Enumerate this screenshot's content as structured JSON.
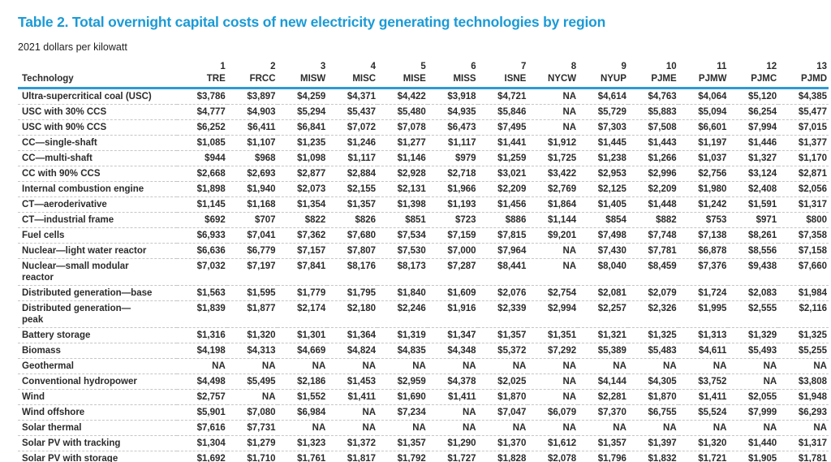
{
  "title": "Table 2. Total overnight capital costs of new electricity generating technologies by region",
  "subtitle": "2021 dollars per kilowatt",
  "colors": {
    "title_blue": "#1b9ad6",
    "header_rule_blue": "#2e9ad5"
  },
  "table": {
    "tech_header": "Technology",
    "col_numbers": [
      "1",
      "2",
      "3",
      "4",
      "5",
      "6",
      "7",
      "8",
      "9",
      "10",
      "11",
      "12",
      "13"
    ],
    "col_codes": [
      "TRE",
      "FRCC",
      "MISW",
      "MISC",
      "MISE",
      "MISS",
      "ISNE",
      "NYCW",
      "NYUP",
      "PJME",
      "PJMW",
      "PJMC",
      "PJMD"
    ],
    "rows": [
      {
        "tech": "Ultra-supercritical coal (USC)",
        "values": [
          "$3,786",
          "$3,897",
          "$4,259",
          "$4,371",
          "$4,422",
          "$3,918",
          "$4,721",
          "NA",
          "$4,614",
          "$4,763",
          "$4,064",
          "$5,120",
          "$4,385"
        ]
      },
      {
        "tech": "USC with 30% CCS",
        "values": [
          "$4,777",
          "$4,903",
          "$5,294",
          "$5,437",
          "$5,480",
          "$4,935",
          "$5,846",
          "NA",
          "$5,729",
          "$5,883",
          "$5,094",
          "$6,254",
          "$5,477"
        ]
      },
      {
        "tech": "USC with 90% CCS",
        "values": [
          "$6,252",
          "$6,411",
          "$6,841",
          "$7,072",
          "$7,078",
          "$6,473",
          "$7,495",
          "NA",
          "$7,303",
          "$7,508",
          "$6,601",
          "$7,994",
          "$7,015"
        ]
      },
      {
        "tech": "CC—single-shaft",
        "values": [
          "$1,085",
          "$1,107",
          "$1,235",
          "$1,246",
          "$1,277",
          "$1,117",
          "$1,441",
          "$1,912",
          "$1,445",
          "$1,443",
          "$1,197",
          "$1,446",
          "$1,377"
        ]
      },
      {
        "tech": "CC—multi-shaft",
        "values": [
          "$944",
          "$968",
          "$1,098",
          "$1,117",
          "$1,146",
          "$979",
          "$1,259",
          "$1,725",
          "$1,238",
          "$1,266",
          "$1,037",
          "$1,327",
          "$1,170"
        ]
      },
      {
        "tech": "CC with 90% CCS",
        "values": [
          "$2,668",
          "$2,693",
          "$2,877",
          "$2,884",
          "$2,928",
          "$2,718",
          "$3,021",
          "$3,422",
          "$2,953",
          "$2,996",
          "$2,756",
          "$3,124",
          "$2,871"
        ]
      },
      {
        "tech": "Internal combustion engine",
        "values": [
          "$1,898",
          "$1,940",
          "$2,073",
          "$2,155",
          "$2,131",
          "$1,966",
          "$2,209",
          "$2,769",
          "$2,125",
          "$2,209",
          "$1,980",
          "$2,408",
          "$2,056"
        ]
      },
      {
        "tech": "CT—aeroderivative",
        "values": [
          "$1,145",
          "$1,168",
          "$1,354",
          "$1,357",
          "$1,398",
          "$1,193",
          "$1,456",
          "$1,864",
          "$1,405",
          "$1,448",
          "$1,242",
          "$1,591",
          "$1,317"
        ]
      },
      {
        "tech": "CT—industrial frame",
        "values": [
          "$692",
          "$707",
          "$822",
          "$826",
          "$851",
          "$723",
          "$886",
          "$1,144",
          "$854",
          "$882",
          "$753",
          "$971",
          "$800"
        ]
      },
      {
        "tech": "Fuel cells",
        "values": [
          "$6,933",
          "$7,041",
          "$7,362",
          "$7,680",
          "$7,534",
          "$7,159",
          "$7,815",
          "$9,201",
          "$7,498",
          "$7,748",
          "$7,138",
          "$8,261",
          "$7,358"
        ]
      },
      {
        "tech": "Nuclear—light water reactor",
        "values": [
          "$6,636",
          "$6,779",
          "$7,157",
          "$7,807",
          "$7,530",
          "$7,000",
          "$7,964",
          "NA",
          "$7,430",
          "$7,781",
          "$6,878",
          "$8,556",
          "$7,158"
        ]
      },
      {
        "tech": "Nuclear—small modular",
        "tech2": "reactor",
        "values": [
          "$7,032",
          "$7,197",
          "$7,841",
          "$8,176",
          "$8,173",
          "$7,287",
          "$8,441",
          "NA",
          "$8,040",
          "$8,459",
          "$7,376",
          "$9,438",
          "$7,660"
        ]
      },
      {
        "tech": "Distributed generation—base",
        "values": [
          "$1,563",
          "$1,595",
          "$1,779",
          "$1,795",
          "$1,840",
          "$1,609",
          "$2,076",
          "$2,754",
          "$2,081",
          "$2,079",
          "$1,724",
          "$2,083",
          "$1,984"
        ]
      },
      {
        "tech": "Distributed generation—",
        "tech2": "peak",
        "values": [
          "$1,839",
          "$1,877",
          "$2,174",
          "$2,180",
          "$2,246",
          "$1,916",
          "$2,339",
          "$2,994",
          "$2,257",
          "$2,326",
          "$1,995",
          "$2,555",
          "$2,116"
        ]
      },
      {
        "tech": "Battery storage",
        "values": [
          "$1,316",
          "$1,320",
          "$1,301",
          "$1,364",
          "$1,319",
          "$1,347",
          "$1,357",
          "$1,351",
          "$1,321",
          "$1,325",
          "$1,313",
          "$1,329",
          "$1,325"
        ]
      },
      {
        "tech": "Biomass",
        "values": [
          "$4,198",
          "$4,313",
          "$4,669",
          "$4,824",
          "$4,835",
          "$4,348",
          "$5,372",
          "$7,292",
          "$5,389",
          "$5,483",
          "$4,611",
          "$5,493",
          "$5,255"
        ]
      },
      {
        "tech": "Geothermal",
        "values": [
          "NA",
          "NA",
          "NA",
          "NA",
          "NA",
          "NA",
          "NA",
          "NA",
          "NA",
          "NA",
          "NA",
          "NA",
          "NA"
        ]
      },
      {
        "tech": "Conventional hydropower",
        "values": [
          "$4,498",
          "$5,495",
          "$2,186",
          "$1,453",
          "$2,959",
          "$4,378",
          "$2,025",
          "NA",
          "$4,144",
          "$4,305",
          "$3,752",
          "NA",
          "$3,808"
        ]
      },
      {
        "tech": "Wind",
        "values": [
          "$2,757",
          "NA",
          "$1,552",
          "$1,411",
          "$1,690",
          "$1,411",
          "$1,870",
          "NA",
          "$2,281",
          "$1,870",
          "$1,411",
          "$2,055",
          "$1,948"
        ]
      },
      {
        "tech": "Wind offshore",
        "values": [
          "$5,901",
          "$7,080",
          "$6,984",
          "NA",
          "$7,234",
          "NA",
          "$7,047",
          "$6,079",
          "$7,370",
          "$6,755",
          "$5,524",
          "$7,999",
          "$6,293"
        ]
      },
      {
        "tech": "Solar thermal",
        "values": [
          "$7,616",
          "$7,731",
          "NA",
          "NA",
          "NA",
          "NA",
          "NA",
          "NA",
          "NA",
          "NA",
          "NA",
          "NA",
          "NA"
        ]
      },
      {
        "tech": "Solar PV with tracking",
        "values": [
          "$1,304",
          "$1,279",
          "$1,323",
          "$1,372",
          "$1,357",
          "$1,290",
          "$1,370",
          "$1,612",
          "$1,357",
          "$1,397",
          "$1,320",
          "$1,440",
          "$1,317"
        ]
      },
      {
        "tech": "Solar PV with storage",
        "values": [
          "$1,692",
          "$1,710",
          "$1,761",
          "$1,817",
          "$1,792",
          "$1,727",
          "$1,828",
          "$2,078",
          "$1,796",
          "$1,832",
          "$1,721",
          "$1,905",
          "$1,781"
        ]
      }
    ]
  }
}
